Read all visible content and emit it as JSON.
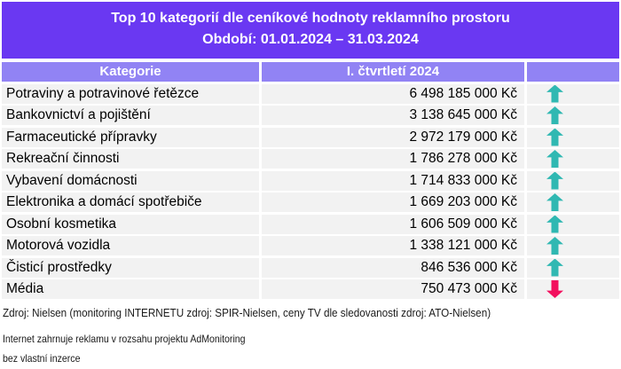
{
  "title": {
    "line1": "Top 10 kategorií dle ceníkové hodnoty reklamního prostoru",
    "line2": "Období: 01.01.2024 – 31.03.2024"
  },
  "table": {
    "headers": {
      "category": "Kategorie",
      "value": "I. čtvrtletí 2024",
      "trend": ""
    },
    "rows": [
      {
        "category": "Potraviny a potravinové řetězce",
        "value": "6 498 185 000 Kč",
        "trend": "up"
      },
      {
        "category": "Bankovnictví a pojištění",
        "value": "3 138 645 000 Kč",
        "trend": "up"
      },
      {
        "category": "Farmaceutické přípravky",
        "value": "2 972 179 000 Kč",
        "trend": "up"
      },
      {
        "category": "Rekreační činnosti",
        "value": "1 786 278 000 Kč",
        "trend": "up"
      },
      {
        "category": "Vybavení domácnosti",
        "value": "1 714 833 000 Kč",
        "trend": "up"
      },
      {
        "category": "Elektronika a domácí spotřebiče",
        "value": "1 669 203 000 Kč",
        "trend": "up"
      },
      {
        "category": "Osobní kosmetika",
        "value": "1 606 509 000 Kč",
        "trend": "up"
      },
      {
        "category": "Motorová vozidla",
        "value": "1 338 121 000 Kč",
        "trend": "up"
      },
      {
        "category": "Čisticí prostředky",
        "value": "846 536 000 Kč",
        "trend": "up"
      },
      {
        "category": "Média",
        "value": "750 473 000 Kč",
        "trend": "down"
      }
    ]
  },
  "footer": {
    "source": "Zdroj: Nielsen (monitoring INTERNETU zdroj: SPIR-Nielsen, ceny TV dle sledovanosti zdroj: ATO-Nielsen)",
    "note1": "Internet zahrnuje reklamu v rozsahu projektu AdMonitoring",
    "note2": "bez vlastní inzerce"
  },
  "colors": {
    "title_bg": "#6A38F2",
    "header_bg": "#9183F4",
    "row_bg": "#F2F2F2",
    "trend_up": "#30B8B2",
    "trend_down": "#F2105E",
    "text_on_purple": "#FFFFFF",
    "row_text": "#000000"
  },
  "chart_data": {
    "type": "table",
    "title": "Top 10 kategorií dle ceníkové hodnoty reklamního prostoru",
    "period": "01.01.2024 – 31.03.2024",
    "columns": [
      "Kategorie",
      "I. čtvrtletí 2024",
      "Trend"
    ],
    "categories": [
      "Potraviny a potravinové řetězce",
      "Bankovnictví a pojištění",
      "Farmaceutické přípravky",
      "Rekreační činnosti",
      "Vybavení domácnosti",
      "Elektronika a domácí spotřebiče",
      "Osobní kosmetika",
      "Motorová vozidla",
      "Čisticí prostředky",
      "Média"
    ],
    "values": [
      6498185000,
      3138645000,
      2972179000,
      1786278000,
      1714833000,
      1669203000,
      1606509000,
      1338121000,
      846536000,
      750473000
    ],
    "unit": "Kč",
    "trends": [
      "up",
      "up",
      "up",
      "up",
      "up",
      "up",
      "up",
      "up",
      "up",
      "down"
    ]
  }
}
